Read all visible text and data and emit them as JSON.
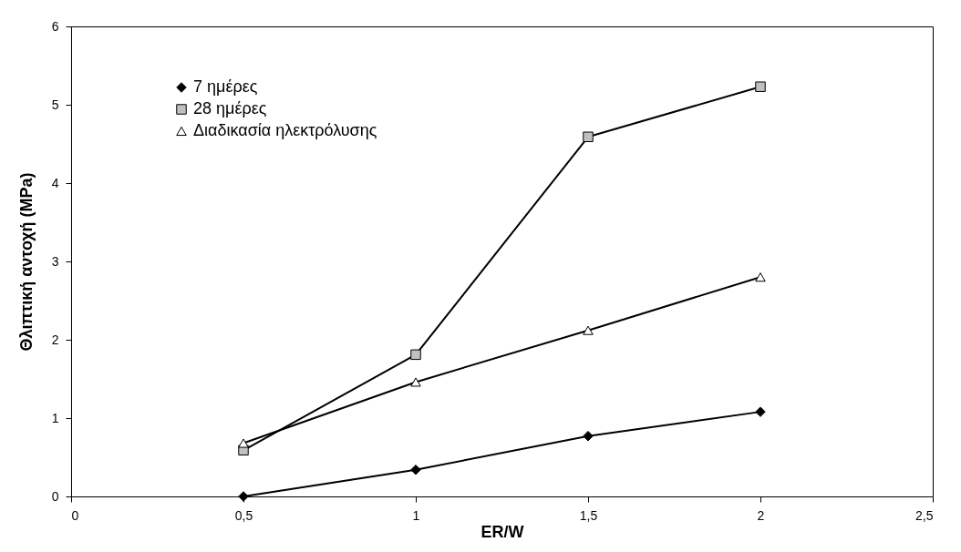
{
  "chart_data": {
    "type": "line",
    "xlabel": "ER/W",
    "ylabel": "Θλιπτική αντοχή (MPa)",
    "x": [
      0.5,
      1,
      1.5,
      2
    ],
    "series": [
      {
        "name": "7 ημέρες",
        "color": "#000000",
        "marker": "diamond",
        "values": [
          0,
          0.34,
          0.77,
          1.08
        ]
      },
      {
        "name": "28 ημέρες",
        "color": "#c0c0c0",
        "marker": "square",
        "values": [
          0.59,
          1.81,
          4.59,
          5.23
        ]
      },
      {
        "name": "Διαδικασία ηλεκτρόλυσης",
        "color": "#ffffff",
        "marker": "triangle",
        "values": [
          0.68,
          1.46,
          2.12,
          2.8
        ]
      }
    ],
    "xlim": [
      0,
      2.5
    ],
    "xticks": [
      0,
      {
        "value": 0.5,
        "label": "0,5"
      },
      1,
      {
        "value": 1.5,
        "label": "1,5"
      },
      2,
      {
        "value": 2.5,
        "label": "2,5"
      }
    ],
    "ylim": [
      0,
      6
    ],
    "yticks": [
      0,
      1,
      2,
      3,
      4,
      5,
      6
    ],
    "grid": false,
    "legend": "top left",
    "line_style": "solid"
  }
}
